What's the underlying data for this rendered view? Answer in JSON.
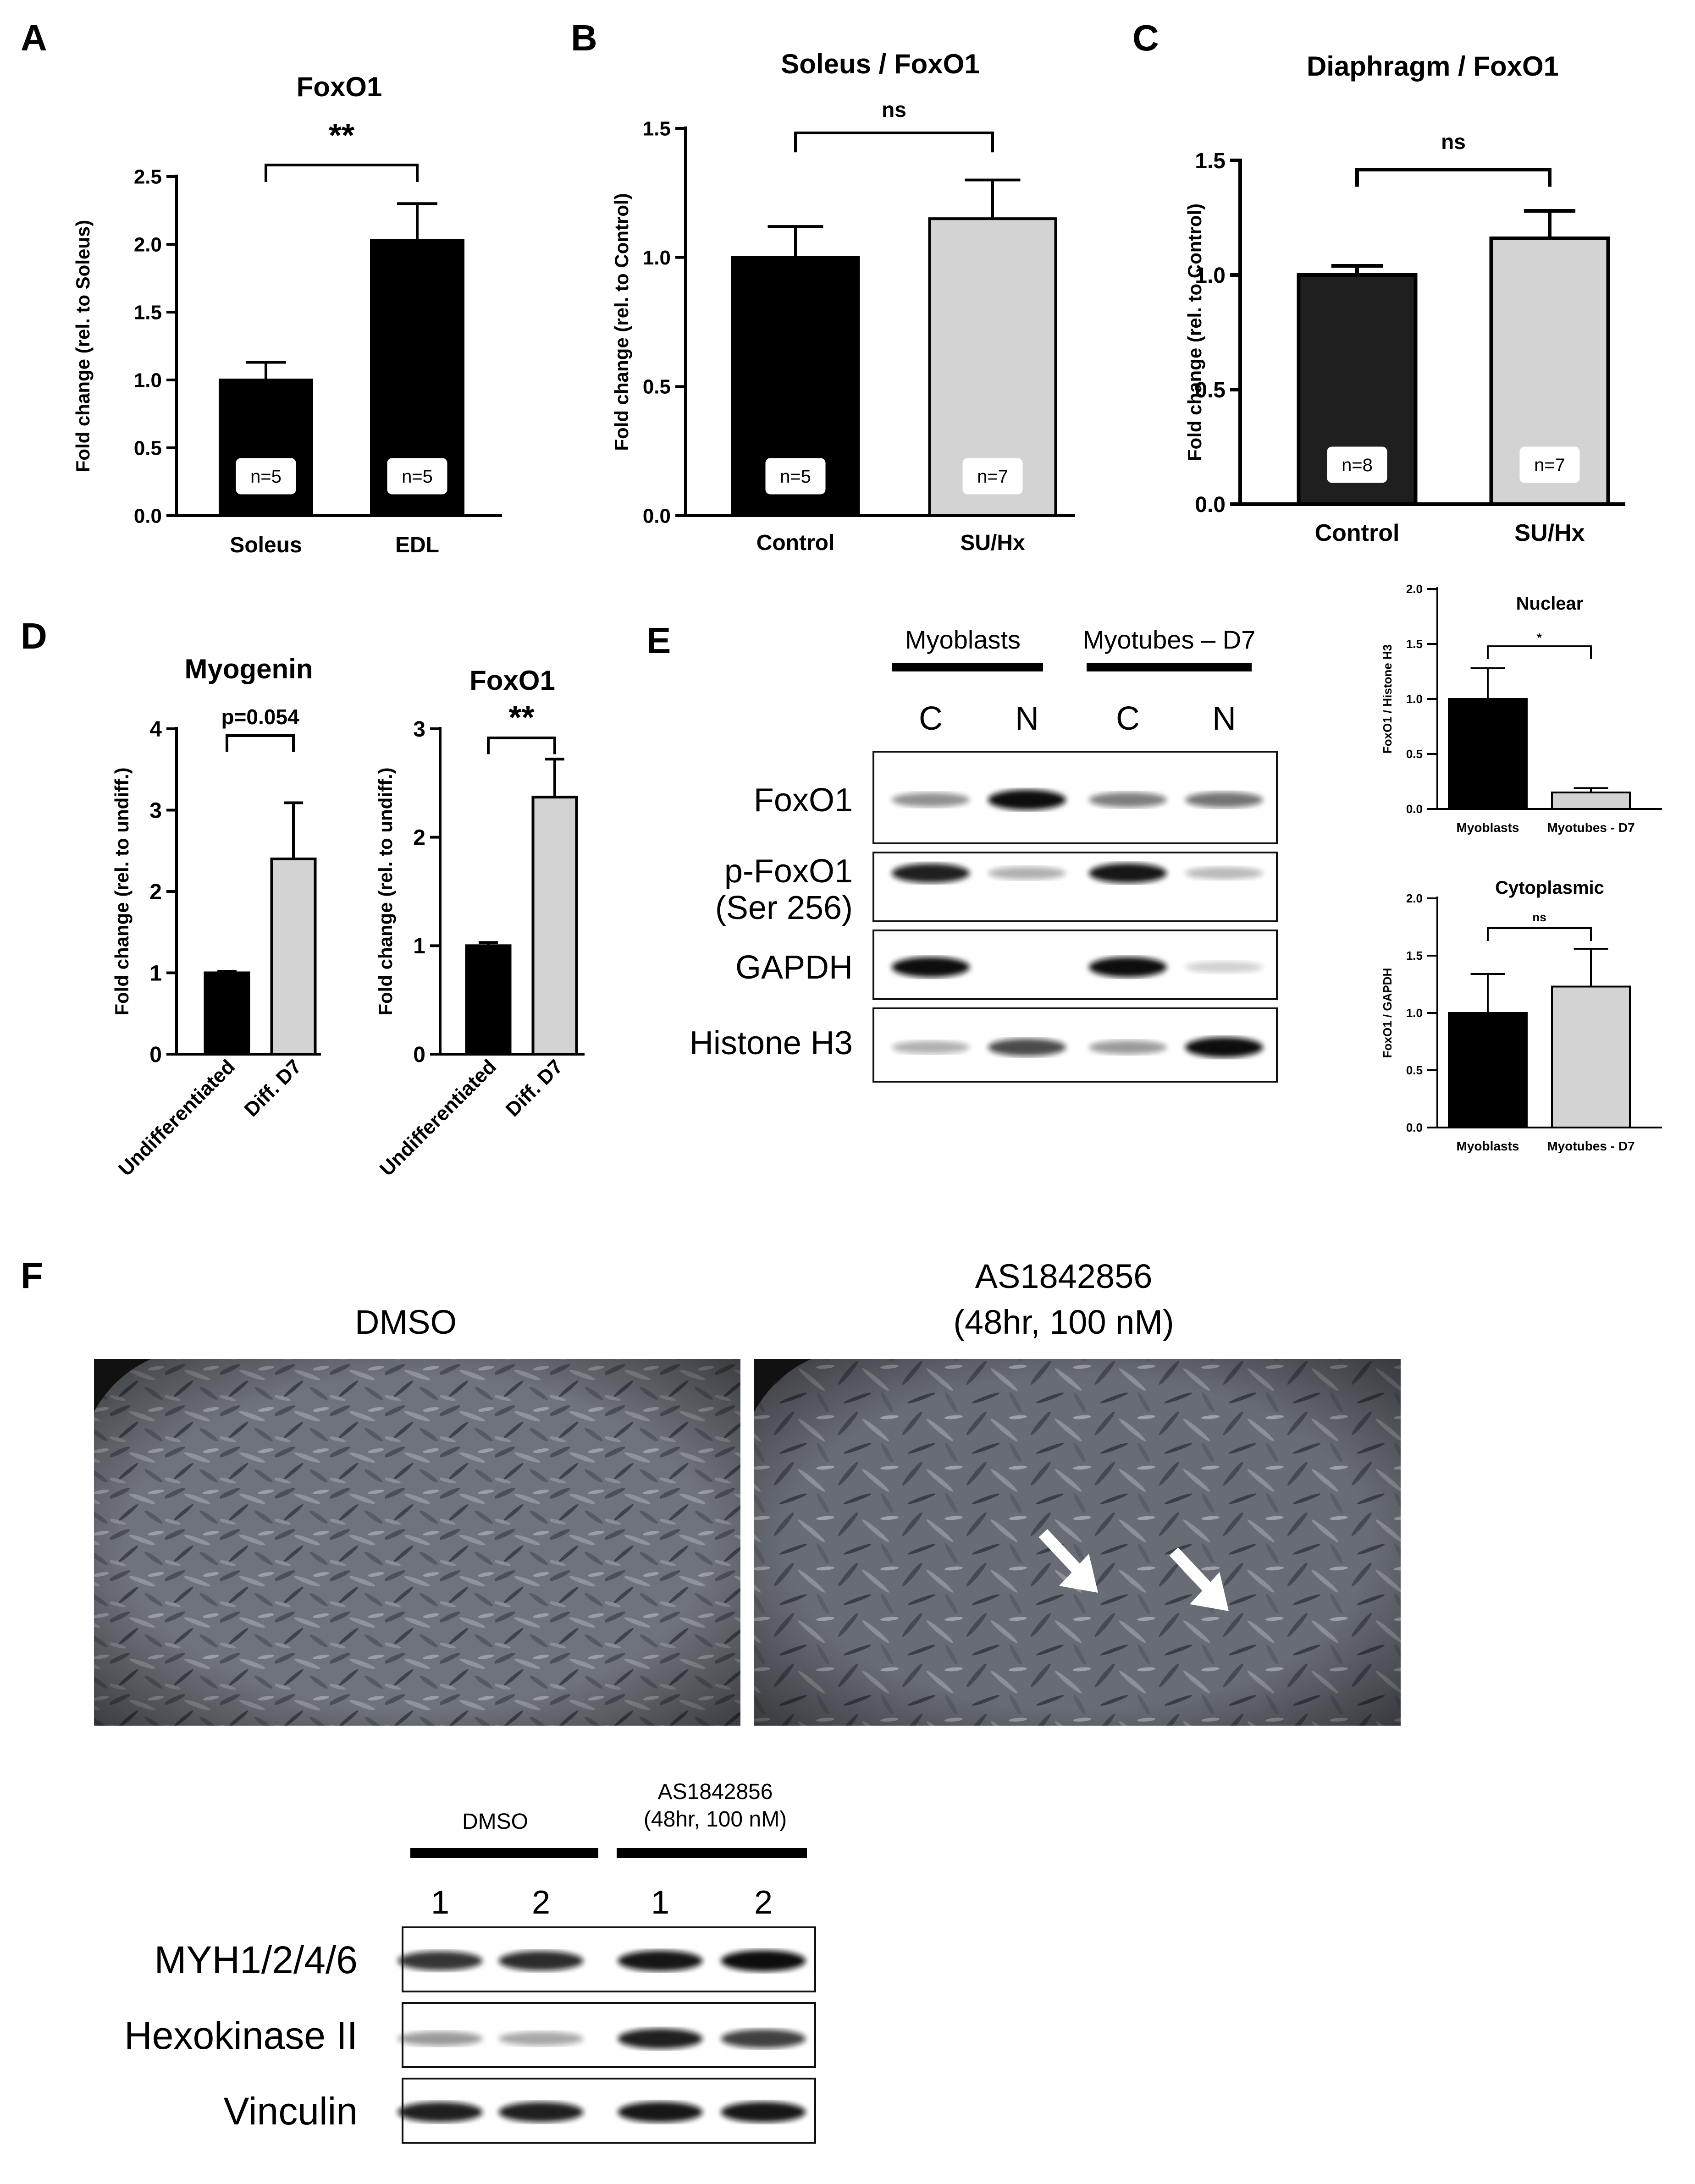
{
  "panel_labels": {
    "A": "A",
    "B": "B",
    "C": "C",
    "D": "D",
    "E": "E",
    "F": "F"
  },
  "colors": {
    "black": "#000000",
    "gray": "#d3d3d3",
    "blot_band": "#1a1a1a",
    "micro_bg": "#6e7278"
  },
  "chart_data": [
    {
      "id": "A",
      "type": "bar",
      "title": "FoxO1",
      "xlabel": "",
      "ylabel": "Fold change (rel. to Soleus)",
      "categories": [
        "Soleus",
        "EDL"
      ],
      "series": [
        {
          "values": [
            1.0,
            2.03
          ],
          "errors": [
            0.13,
            0.27
          ]
        }
      ],
      "bar_colors": [
        "#000000",
        "#000000"
      ],
      "n_labels": [
        "n=5",
        "n=5"
      ],
      "ylim": [
        0,
        2.5
      ],
      "yticks": [
        "0.0",
        "0.5",
        "1.0",
        "1.5",
        "2.0",
        "2.5"
      ],
      "significance": "**",
      "grid": false
    },
    {
      "id": "B",
      "type": "bar",
      "title": "Soleus / FoxO1",
      "xlabel": "",
      "ylabel": "Fold change (rel. to Control)",
      "categories": [
        "Control",
        "SU/Hx"
      ],
      "series": [
        {
          "values": [
            1.0,
            1.15
          ],
          "errors": [
            0.12,
            0.15
          ]
        }
      ],
      "bar_colors": [
        "#000000",
        "#d3d3d3"
      ],
      "n_labels": [
        "n=5",
        "n=7"
      ],
      "ylim": [
        0,
        1.5
      ],
      "yticks": [
        "0.0",
        "0.5",
        "1.0",
        "1.5"
      ],
      "significance": "ns",
      "grid": false
    },
    {
      "id": "C",
      "type": "bar",
      "title": "Diaphragm / FoxO1",
      "xlabel": "",
      "ylabel": "Fold change (rel. to Control)",
      "categories": [
        "Control",
        "SU/Hx"
      ],
      "series": [
        {
          "values": [
            1.0,
            1.16
          ],
          "errors": [
            0.04,
            0.12
          ]
        }
      ],
      "bar_colors": [
        "#1f1f1f",
        "#d3d3d3"
      ],
      "n_labels": [
        "n=8",
        "n=7"
      ],
      "ylim": [
        0,
        1.5
      ],
      "yticks": [
        "0.0",
        "0.5",
        "1.0",
        "1.5"
      ],
      "significance": "ns",
      "grid": false
    },
    {
      "id": "D1",
      "type": "bar",
      "title": "Myogenin",
      "xlabel": "",
      "ylabel": "Fold change (rel. to undiff.)",
      "categories": [
        "Undifferentiated",
        "Diff. D7"
      ],
      "series": [
        {
          "values": [
            1.0,
            2.4
          ],
          "errors": [
            0.02,
            0.69
          ]
        }
      ],
      "bar_colors": [
        "#000000",
        "#d3d3d3"
      ],
      "ylim": [
        0,
        4
      ],
      "yticks": [
        "0",
        "1",
        "2",
        "3",
        "4"
      ],
      "significance": "p=0.054",
      "grid": false
    },
    {
      "id": "D2",
      "type": "bar",
      "title": "FoxO1",
      "xlabel": "",
      "ylabel": "Fold change (rel. to undiff.)",
      "categories": [
        "Undifferentiated",
        "Diff. D7"
      ],
      "series": [
        {
          "values": [
            1.0,
            2.37
          ],
          "errors": [
            0.03,
            0.35
          ]
        }
      ],
      "bar_colors": [
        "#000000",
        "#d3d3d3"
      ],
      "ylim": [
        0,
        3
      ],
      "yticks": [
        "0",
        "1",
        "2",
        "3"
      ],
      "significance": "**",
      "grid": false
    },
    {
      "id": "E1",
      "type": "bar",
      "title": "Nuclear",
      "xlabel": "",
      "ylabel": "FoxO1 / Histone H3",
      "categories": [
        "Myoblasts",
        "Myotubes - D7"
      ],
      "series": [
        {
          "values": [
            1.0,
            0.15
          ],
          "errors": [
            0.28,
            0.04
          ]
        }
      ],
      "bar_colors": [
        "#000000",
        "#d3d3d3"
      ],
      "ylim": [
        0,
        2.0
      ],
      "yticks": [
        "0.0",
        "0.5",
        "1.0",
        "1.5",
        "2.0"
      ],
      "significance": "*",
      "grid": false
    },
    {
      "id": "E2",
      "type": "bar",
      "title": "Cytoplasmic",
      "xlabel": "",
      "ylabel": "FoxO1 / GAPDH",
      "categories": [
        "Myoblasts",
        "Myotubes - D7"
      ],
      "series": [
        {
          "values": [
            1.0,
            1.23
          ],
          "errors": [
            0.34,
            0.33
          ]
        }
      ],
      "bar_colors": [
        "#000000",
        "#d3d3d3"
      ],
      "ylim": [
        0,
        2.0
      ],
      "yticks": [
        "0.0",
        "0.5",
        "1.0",
        "1.5",
        "2.0"
      ],
      "significance": "ns",
      "grid": false
    }
  ],
  "blot_E": {
    "group_labels": [
      "Myoblasts",
      "Myotubes – D7"
    ],
    "lane_labels": [
      "C",
      "N",
      "C",
      "N"
    ],
    "rows": [
      {
        "label": "FoxO1",
        "bands": [
          0.35,
          1.0,
          0.45,
          0.5
        ]
      },
      {
        "label_line1": "p-FoxO1",
        "label_line2": "(Ser 256)",
        "bands": [
          0.9,
          0.2,
          0.95,
          0.15
        ]
      },
      {
        "label": "GAPDH",
        "bands": [
          1.0,
          0.0,
          1.0,
          0.05
        ]
      },
      {
        "label": "Histone H3",
        "bands": [
          0.2,
          0.7,
          0.3,
          1.0
        ]
      }
    ]
  },
  "micro": {
    "left_title": "DMSO",
    "right_title_line1": "AS1842856",
    "right_title_line2": "(48hr, 100 nM)"
  },
  "blot_F": {
    "group1": "DMSO",
    "group2_line1": "AS1842856",
    "group2_line2": "(48hr, 100 nM)",
    "lane_labels": [
      "1",
      "2",
      "1",
      "2"
    ],
    "rows": [
      {
        "label": "MYH1/2/4/6",
        "bands": [
          0.8,
          0.85,
          0.95,
          1.0
        ]
      },
      {
        "label": "Hexokinase II",
        "bands": [
          0.3,
          0.25,
          0.9,
          0.75
        ]
      },
      {
        "label": "Vinculin",
        "bands": [
          0.9,
          0.9,
          0.95,
          0.95
        ]
      }
    ]
  }
}
